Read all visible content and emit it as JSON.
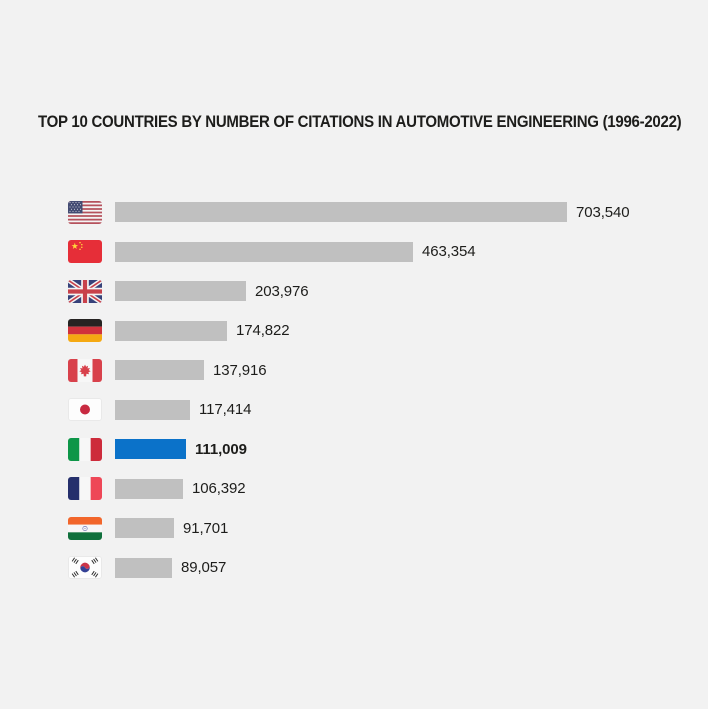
{
  "chart_data": {
    "type": "bar",
    "orientation": "horizontal",
    "title": "TOP 10 COUNTRIES BY NUMBER OF CITATIONS IN AUTOMOTIVE ENGINEERING (1996-2022)",
    "categories": [
      "United States",
      "China",
      "United Kingdom",
      "Germany",
      "Canada",
      "Japan",
      "Italy",
      "France",
      "India",
      "South Korea"
    ],
    "values": [
      703540,
      463354,
      203976,
      174822,
      137916,
      117414,
      111009,
      106392,
      91701,
      89057
    ],
    "value_labels": [
      "703,540",
      "463,354",
      "203,976",
      "174,822",
      "137,916",
      "117,414",
      "111,009",
      "106,392",
      "91,701",
      "89,057"
    ],
    "flag_icons": [
      "us-flag-icon",
      "china-flag-icon",
      "uk-flag-icon",
      "germany-flag-icon",
      "canada-flag-icon",
      "japan-flag-icon",
      "italy-flag-icon",
      "france-flag-icon",
      "india-flag-icon",
      "south-korea-flag-icon"
    ],
    "highlight_index": 6,
    "highlighted_category": "Italy",
    "bar_color": "#c0c0c0",
    "highlight_color": "#0b72c9",
    "background_color": "#f2f2f2",
    "text_color": "#1d1d1b",
    "xlim": [
      0,
      703540
    ],
    "grid": false,
    "legend": "none",
    "value_label_position": "end-of-bar"
  }
}
